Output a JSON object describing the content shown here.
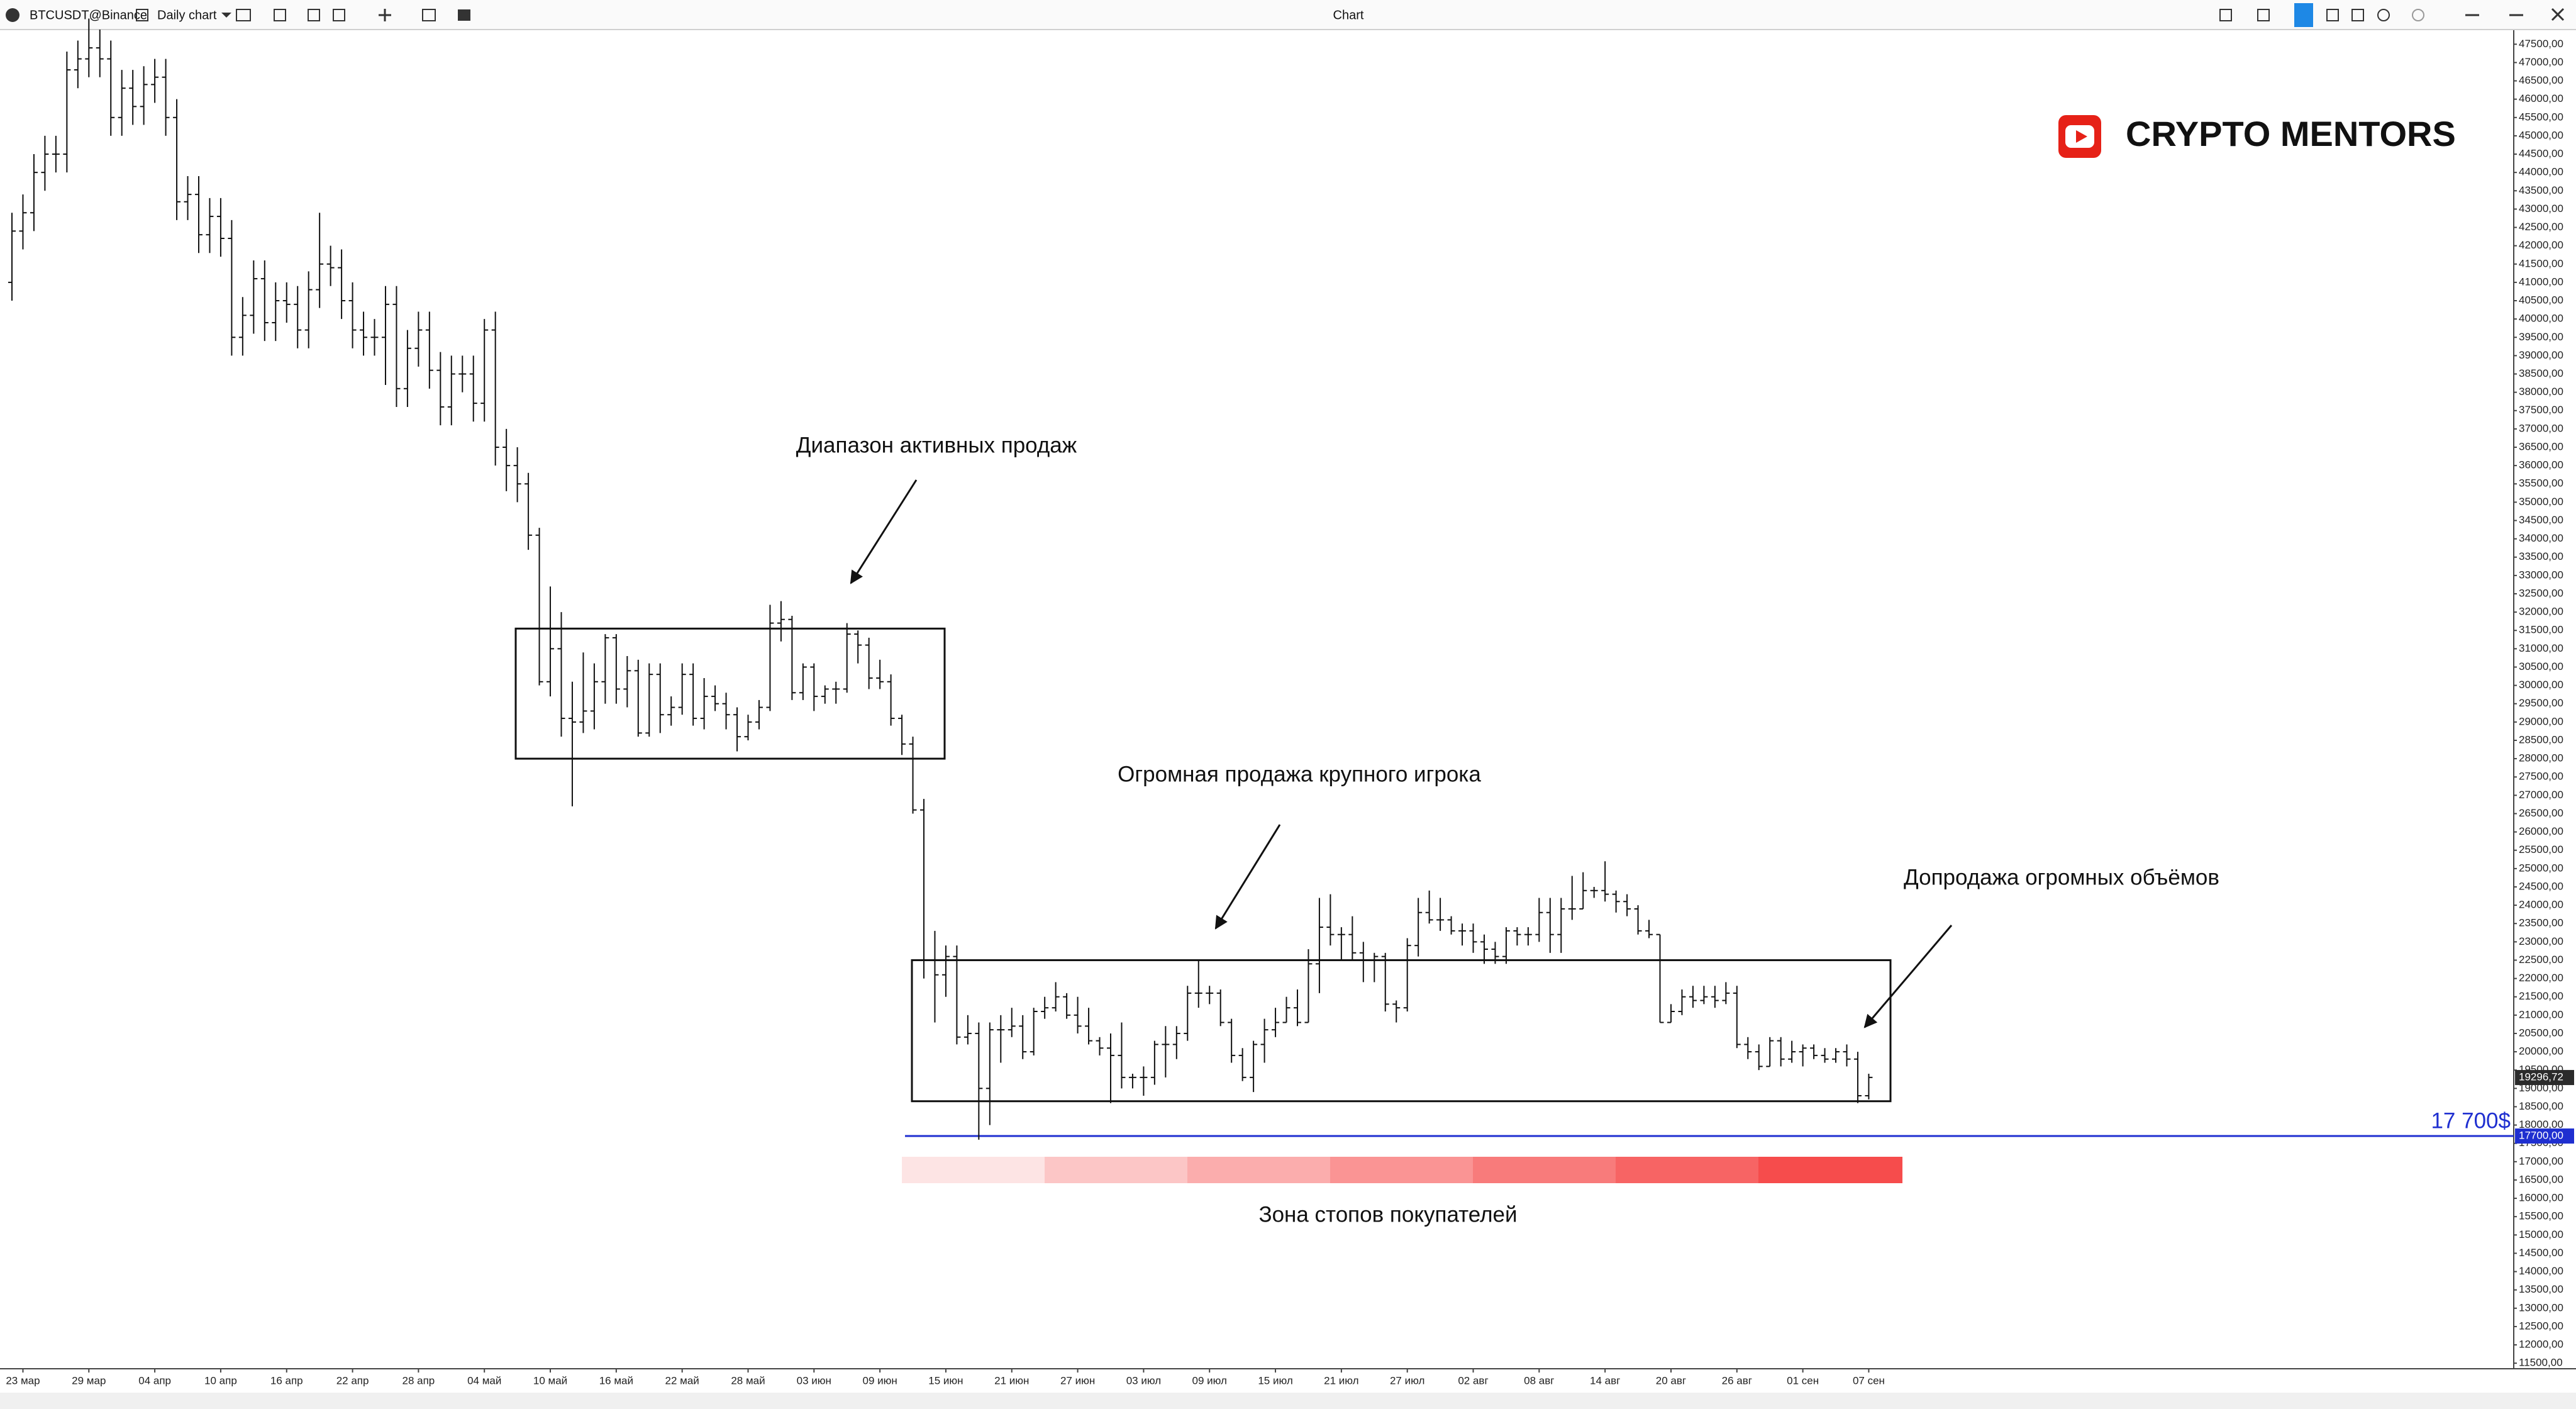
{
  "toolbar": {
    "symbol": "BTCUSDT@Binance",
    "chart_kind": "Daily chart",
    "window_title": "Chart"
  },
  "logo": {
    "text": "CRYPTO MENTORS"
  },
  "chart_data": {
    "type": "ohlc",
    "categories": [
      null,
      "23 мар",
      null,
      null,
      null,
      null,
      null,
      "29 мар",
      null,
      null,
      null,
      null,
      null,
      "04 апр",
      null,
      null,
      null,
      null,
      null,
      "10 апр",
      null,
      null,
      null,
      null,
      null,
      "16 апр",
      null,
      null,
      null,
      null,
      null,
      "22 апр",
      null,
      null,
      null,
      null,
      null,
      "28 апр",
      null,
      null,
      null,
      null,
      null,
      "04 май",
      null,
      null,
      null,
      null,
      null,
      "10 май",
      null,
      null,
      null,
      null,
      null,
      "16 май",
      null,
      null,
      null,
      null,
      null,
      "22 май",
      null,
      null,
      null,
      null,
      null,
      "28 май",
      null,
      null,
      null,
      null,
      null,
      "03 июн",
      null,
      null,
      null,
      null,
      null,
      "09 июн",
      null,
      null,
      null,
      null,
      null,
      "15 июн",
      null,
      null,
      null,
      null,
      null,
      "21 июн",
      null,
      null,
      null,
      null,
      null,
      "27 июн",
      null,
      null,
      null,
      null,
      null,
      "03 июл",
      null,
      null,
      null,
      null,
      null,
      "09 июл",
      null,
      null,
      null,
      null,
      null,
      "15 июл",
      null,
      null,
      null,
      null,
      null,
      "21 июл",
      null,
      null,
      null,
      null,
      null,
      "27 июл",
      null,
      null,
      null,
      null,
      null,
      "02 авг",
      null,
      null,
      null,
      null,
      null,
      "08 авг",
      null,
      null,
      null,
      null,
      null,
      "14 авг",
      null,
      null,
      null,
      null,
      null,
      "20 авг",
      null,
      null,
      null,
      null,
      null,
      "26 авг",
      null,
      null,
      null,
      null,
      null,
      "01 сен",
      null,
      null,
      null,
      null,
      null,
      "07 сен"
    ],
    "open": [
      41000,
      42400,
      42900,
      44000,
      44500,
      44500,
      46800,
      47100,
      47400,
      47100,
      45500,
      46300,
      45800,
      46400,
      46600,
      45500,
      43200,
      43400,
      42300,
      42800,
      42200,
      39500,
      40100,
      41100,
      39900,
      40500,
      40400,
      39700,
      40800,
      41500,
      41400,
      40500,
      39700,
      39500,
      39500,
      40400,
      38100,
      39200,
      39700,
      38600,
      37600,
      38500,
      38500,
      37700,
      39700,
      36500,
      36000,
      35500,
      34100,
      30100,
      31000,
      29100,
      29000,
      29300,
      30100,
      31300,
      29900,
      30400,
      28700,
      30300,
      29200,
      29400,
      30300,
      29100,
      29700,
      29500,
      29200,
      28600,
      29000,
      29400,
      31700,
      31800,
      29800,
      30500,
      29700,
      29900,
      29900,
      31400,
      31100,
      30200,
      30100,
      29100,
      28400,
      26600,
      22500,
      22100,
      22600,
      20400,
      20500,
      19000,
      20600,
      20600,
      20700,
      20000,
      21100,
      21200,
      21500,
      21000,
      20700,
      20300,
      20100,
      19900,
      19300,
      19300,
      19300,
      20200,
      20200,
      20500,
      21600,
      21600,
      21600,
      20800,
      19900,
      19300,
      20200,
      20600,
      20800,
      21200,
      20800,
      22400,
      23400,
      23200,
      23200,
      22700,
      22500,
      22600,
      21300,
      21200,
      22900,
      23800,
      23600,
      23600,
      23300,
      23300,
      23000,
      22800,
      22600,
      23300,
      23200,
      23200,
      23800,
      23200,
      23900,
      23900,
      24400,
      24400,
      24300,
      24100,
      23900,
      23300,
      23200,
      20800,
      21100,
      21500,
      21400,
      21500,
      21400,
      21600,
      20200,
      20000,
      19600,
      20300,
      19800,
      20000,
      20100,
      19900,
      19800,
      20000,
      19800,
      18800
    ],
    "high": [
      42900,
      43400,
      44500,
      45000,
      45000,
      47300,
      47600,
      48200,
      47900,
      47600,
      46800,
      46800,
      46900,
      47100,
      47100,
      46000,
      43900,
      43900,
      43300,
      43300,
      42700,
      40600,
      41600,
      41600,
      41000,
      41000,
      40900,
      41300,
      42900,
      42000,
      41900,
      41000,
      40200,
      40000,
      40900,
      40900,
      39700,
      40200,
      40200,
      39100,
      39000,
      39000,
      39000,
      40000,
      40200,
      37000,
      36500,
      35800,
      34300,
      32700,
      32000,
      30100,
      30900,
      30600,
      31400,
      31400,
      30800,
      30700,
      30600,
      30600,
      29700,
      30600,
      30600,
      30200,
      30000,
      29800,
      29400,
      29200,
      29600,
      32200,
      32300,
      31900,
      30600,
      30600,
      30000,
      30100,
      31700,
      31500,
      31300,
      30700,
      30300,
      29200,
      28600,
      26900,
      23300,
      22900,
      22900,
      21000,
      20800,
      20800,
      21000,
      21200,
      21000,
      21200,
      21500,
      21900,
      21600,
      21500,
      21200,
      20400,
      20500,
      20800,
      19400,
      19600,
      20300,
      20700,
      20700,
      21800,
      22500,
      21800,
      21700,
      20900,
      20100,
      20300,
      20900,
      21200,
      21500,
      21700,
      22800,
      24200,
      24300,
      23400,
      23700,
      23000,
      22700,
      22700,
      21400,
      23100,
      24200,
      24400,
      24200,
      23700,
      23500,
      23500,
      23200,
      23000,
      23400,
      23400,
      23400,
      24200,
      24200,
      24200,
      24800,
      24900,
      24500,
      25200,
      24400,
      24300,
      24000,
      23600,
      23200,
      21300,
      21700,
      21800,
      21800,
      21800,
      21900,
      21800,
      20400,
      20200,
      20400,
      20400,
      20300,
      20200,
      20200,
      20100,
      20100,
      20200,
      20000,
      19400
    ],
    "low": [
      40500,
      41900,
      42400,
      43500,
      44000,
      44000,
      46300,
      46600,
      46600,
      45000,
      45000,
      45300,
      45300,
      45900,
      45000,
      42700,
      42700,
      41800,
      41800,
      41700,
      39000,
      39000,
      39600,
      39400,
      39400,
      39900,
      39200,
      39200,
      40300,
      40900,
      40000,
      39200,
      39000,
      39000,
      38200,
      37600,
      37600,
      38700,
      38100,
      37100,
      37100,
      38000,
      37200,
      37200,
      36000,
      35300,
      35000,
      33700,
      30000,
      29700,
      28600,
      26700,
      28700,
      28800,
      29500,
      29500,
      29400,
      28600,
      28600,
      28700,
      28900,
      29200,
      28900,
      28800,
      29300,
      28800,
      28200,
      28500,
      28800,
      29300,
      31200,
      29600,
      29600,
      29300,
      29500,
      29500,
      29800,
      30600,
      29900,
      29900,
      28900,
      28100,
      26500,
      22000,
      20800,
      21500,
      20200,
      20200,
      17600,
      18000,
      19700,
      20400,
      19800,
      19900,
      20900,
      21100,
      20900,
      20500,
      20200,
      19900,
      18600,
      19000,
      19000,
      18800,
      19100,
      19300,
      19800,
      20300,
      21200,
      21300,
      20700,
      19700,
      19200,
      18900,
      19700,
      20400,
      20800,
      20700,
      20800,
      21600,
      22900,
      22500,
      22500,
      21900,
      21900,
      21100,
      20800,
      21100,
      22600,
      23500,
      23300,
      23200,
      22900,
      22700,
      22400,
      22400,
      22400,
      22900,
      22900,
      23000,
      22700,
      22700,
      23600,
      23900,
      24200,
      24100,
      23800,
      23700,
      23200,
      23100,
      20800,
      20800,
      21000,
      21200,
      21300,
      21200,
      21300,
      20100,
      19800,
      19500,
      19600,
      19600,
      19700,
      19600,
      19800,
      19700,
      19700,
      19600,
      18600,
      18700
    ],
    "close": [
      42400,
      42900,
      44000,
      44500,
      44500,
      46800,
      47100,
      47400,
      47100,
      45500,
      46300,
      45800,
      46400,
      46600,
      45500,
      43200,
      43400,
      42300,
      42800,
      42200,
      39500,
      40100,
      41100,
      39900,
      40500,
      40400,
      39700,
      40800,
      41500,
      41400,
      40500,
      39700,
      39500,
      39500,
      40400,
      38100,
      39200,
      39700,
      38600,
      37600,
      38500,
      38500,
      37700,
      39700,
      36500,
      36000,
      35500,
      34100,
      30100,
      31000,
      29100,
      29000,
      29300,
      30100,
      31300,
      29900,
      30400,
      28700,
      30300,
      29200,
      29400,
      30300,
      29100,
      29700,
      29500,
      29200,
      28600,
      29000,
      29400,
      31700,
      31800,
      29800,
      30500,
      29700,
      29900,
      29900,
      31400,
      31100,
      30200,
      30100,
      29100,
      28400,
      26600,
      22500,
      22100,
      22600,
      20400,
      20500,
      19000,
      20600,
      20600,
      20700,
      20000,
      21100,
      21200,
      21500,
      21000,
      20700,
      20300,
      20100,
      19900,
      19300,
      19300,
      19300,
      20200,
      20200,
      20500,
      21600,
      21600,
      21600,
      20800,
      19900,
      19300,
      20200,
      20600,
      20800,
      21200,
      20800,
      22400,
      23400,
      23200,
      23200,
      22700,
      22500,
      22600,
      21300,
      21200,
      22900,
      23800,
      23600,
      23600,
      23300,
      23300,
      23000,
      22800,
      22600,
      23300,
      23200,
      23200,
      23800,
      23200,
      23900,
      23900,
      24400,
      24400,
      24300,
      24100,
      23900,
      23300,
      23200,
      20800,
      21100,
      21500,
      21400,
      21500,
      21400,
      21600,
      20200,
      20000,
      19600,
      20300,
      19800,
      20000,
      20100,
      19900,
      19800,
      20000,
      19800,
      18800,
      19300
    ],
    "color": "#111111",
    "ylim": [
      11400,
      47900
    ],
    "yticks": [
      {
        "value": 47500,
        "label": "47500,00"
      },
      {
        "value": 47000,
        "label": "47000,00"
      },
      {
        "value": 46500,
        "label": "46500,00"
      },
      {
        "value": 46000,
        "label": "46000,00"
      },
      {
        "value": 45500,
        "label": "45500,00"
      },
      {
        "value": 45000,
        "label": "45000,00"
      },
      {
        "value": 44500,
        "label": "44500,00"
      },
      {
        "value": 44000,
        "label": "44000,00"
      },
      {
        "value": 43500,
        "label": "43500,00"
      },
      {
        "value": 43000,
        "label": "43000,00"
      },
      {
        "value": 42500,
        "label": "42500,00"
      },
      {
        "value": 42000,
        "label": "42000,00"
      },
      {
        "value": 41500,
        "label": "41500,00"
      },
      {
        "value": 41000,
        "label": "41000,00"
      },
      {
        "value": 40500,
        "label": "40500,00"
      },
      {
        "value": 40000,
        "label": "40000,00"
      },
      {
        "value": 39500,
        "label": "39500,00"
      },
      {
        "value": 39000,
        "label": "39000,00"
      },
      {
        "value": 38500,
        "label": "38500,00"
      },
      {
        "value": 38000,
        "label": "38000,00"
      },
      {
        "value": 37500,
        "label": "37500,00"
      },
      {
        "value": 37000,
        "label": "37000,00"
      },
      {
        "value": 36500,
        "label": "36500,00"
      },
      {
        "value": 36000,
        "label": "36000,00"
      },
      {
        "value": 35500,
        "label": "35500,00"
      },
      {
        "value": 35000,
        "label": "35000,00"
      },
      {
        "value": 34500,
        "label": "34500,00"
      },
      {
        "value": 34000,
        "label": "34000,00"
      },
      {
        "value": 33500,
        "label": "33500,00"
      },
      {
        "value": 33000,
        "label": "33000,00"
      },
      {
        "value": 32500,
        "label": "32500,00"
      },
      {
        "value": 32000,
        "label": "32000,00"
      },
      {
        "value": 31500,
        "label": "31500,00"
      },
      {
        "value": 31000,
        "label": "31000,00"
      },
      {
        "value": 30500,
        "label": "30500,00"
      },
      {
        "value": 30000,
        "label": "30000,00"
      },
      {
        "value": 29500,
        "label": "29500,00"
      },
      {
        "value": 29000,
        "label": "29000,00"
      },
      {
        "value": 28500,
        "label": "28500,00"
      },
      {
        "value": 28000,
        "label": "28000,00"
      },
      {
        "value": 27500,
        "label": "27500,00"
      },
      {
        "value": 27000,
        "label": "27000,00"
      },
      {
        "value": 26500,
        "label": "26500,00"
      },
      {
        "value": 26000,
        "label": "26000,00"
      },
      {
        "value": 25500,
        "label": "25500,00"
      },
      {
        "value": 25000,
        "label": "25000,00"
      },
      {
        "value": 24500,
        "label": "24500,00"
      },
      {
        "value": 24000,
        "label": "24000,00"
      },
      {
        "value": 23500,
        "label": "23500,00"
      },
      {
        "value": 23000,
        "label": "23000,00"
      },
      {
        "value": 22500,
        "label": "22500,00"
      },
      {
        "value": 22000,
        "label": "22000,00"
      },
      {
        "value": 21500,
        "label": "21500,00"
      },
      {
        "value": 21000,
        "label": "21000,00"
      },
      {
        "value": 20500,
        "label": "20500,00"
      },
      {
        "value": 20000,
        "label": "20000,00"
      },
      {
        "value": 19500,
        "label": "19500,00"
      },
      {
        "value": 19000,
        "label": "19000,00"
      },
      {
        "value": 18500,
        "label": "18500,00"
      },
      {
        "value": 18000,
        "label": "18000,00"
      },
      {
        "value": 17500,
        "label": "17500,00"
      },
      {
        "value": 17000,
        "label": "17000,00"
      },
      {
        "value": 16500,
        "label": "16500,00"
      },
      {
        "value": 16000,
        "label": "16000,00"
      },
      {
        "value": 15500,
        "label": "15500,00"
      },
      {
        "value": 15000,
        "label": "15000,00"
      },
      {
        "value": 14500,
        "label": "14500,00"
      },
      {
        "value": 14000,
        "label": "14000,00"
      },
      {
        "value": 13500,
        "label": "13500,00"
      },
      {
        "value": 13000,
        "label": "13000,00"
      },
      {
        "value": 12500,
        "label": "12500,00"
      },
      {
        "value": 12000,
        "label": "12000,00"
      },
      {
        "value": 11500,
        "label": "11500,00"
      }
    ],
    "last_price": {
      "value": 19296.72,
      "label": "19296,72"
    },
    "level": {
      "value": 17700,
      "label": "17 700$",
      "axis_label": "17700,00",
      "color": "#1f2fd0"
    },
    "boxes": [
      {
        "top": 31550,
        "bottom": 28000
      },
      {
        "top": 22500,
        "bottom": 18650
      }
    ],
    "annotations": [
      "Диапазон активных продаж",
      "Огромная продажа крупного игрока",
      "Допродажа огромных объёмов"
    ],
    "zone_label": "Зона стопов покупателей"
  }
}
